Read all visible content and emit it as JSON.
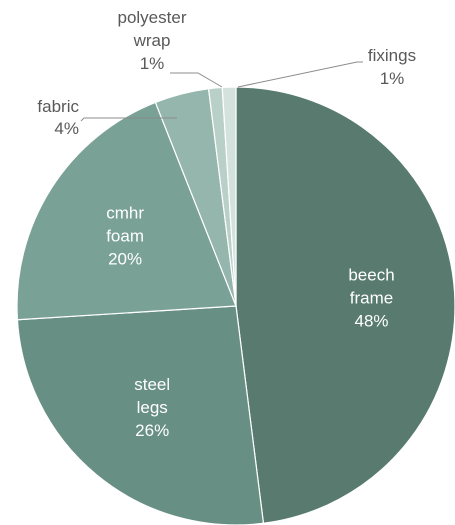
{
  "chart_data": {
    "type": "pie",
    "start_angle_deg": 0,
    "direction": "clockwise",
    "slices": [
      {
        "label_lines": [
          "beech",
          "frame"
        ],
        "value": 48,
        "value_label": "48%",
        "color": "#587a6f",
        "label_position": "inside"
      },
      {
        "label_lines": [
          "steel",
          "legs"
        ],
        "value": 26,
        "value_label": "26%",
        "color": "#688f84",
        "label_position": "inside"
      },
      {
        "label_lines": [
          "cmhr",
          "foam"
        ],
        "value": 20,
        "value_label": "20%",
        "color": "#79a196",
        "label_position": "inside"
      },
      {
        "label_lines": [
          "fabric"
        ],
        "value": 4,
        "value_label": "4%",
        "color": "#95b6ad",
        "label_position": "outside"
      },
      {
        "label_lines": [
          "polyester",
          "wrap"
        ],
        "value": 1,
        "value_label": "1%",
        "color": "#b9d0c8",
        "label_position": "outside"
      },
      {
        "label_lines": [
          "fixings"
        ],
        "value": 1,
        "value_label": "1%",
        "color": "#d3e2dc",
        "label_position": "outside"
      }
    ]
  }
}
